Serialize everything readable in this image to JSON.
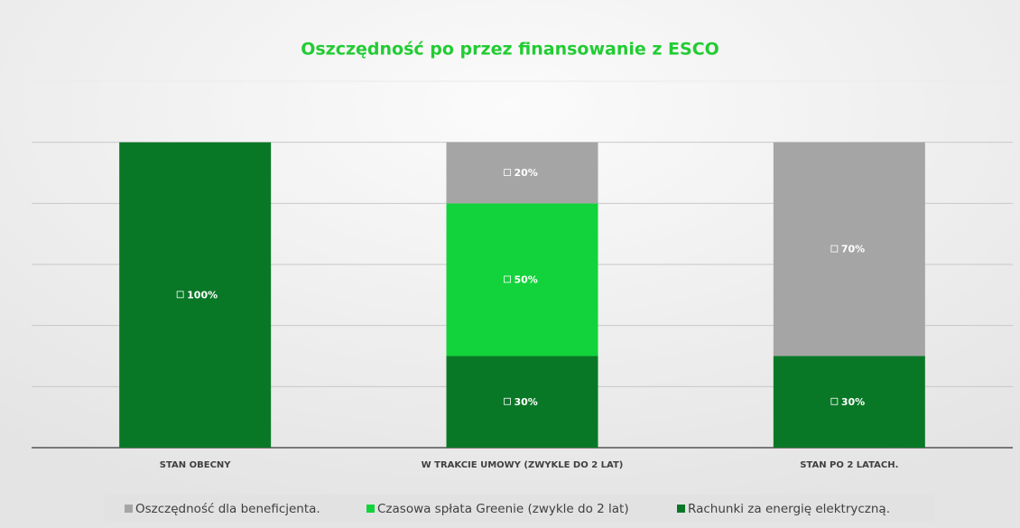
{
  "chart_data": {
    "type": "stacked-bar",
    "title": "Oszczędność po przez finansowanie z ESCO",
    "categories": [
      "STAN OBECNY",
      "W TRAKCIE UMOWY (ZWYKLE DO 2 LAT)",
      "STAN PO 2 LATACH."
    ],
    "series": [
      {
        "name": "Rachunki za energię elektryczną.",
        "color": "#097826",
        "values": [
          100,
          30,
          30
        ],
        "value_labels": [
          "100%",
          "30%",
          "30%"
        ]
      },
      {
        "name": "Czasowa spłata Greenie (zwykle do 2 lat)",
        "color": "#12d33b",
        "values": [
          null,
          50,
          null
        ],
        "value_labels": [
          null,
          "50%",
          null
        ]
      },
      {
        "name": "Oszczędność dla beneficjenta.",
        "color": "#a5a5a5",
        "values": [
          null,
          20,
          70
        ],
        "value_labels": [
          null,
          "20%",
          "70%"
        ]
      }
    ],
    "ylim": [
      0,
      120
    ],
    "yticks": [
      0,
      20,
      40,
      60,
      80,
      100,
      120
    ],
    "grid": true,
    "legend": "bottom"
  }
}
